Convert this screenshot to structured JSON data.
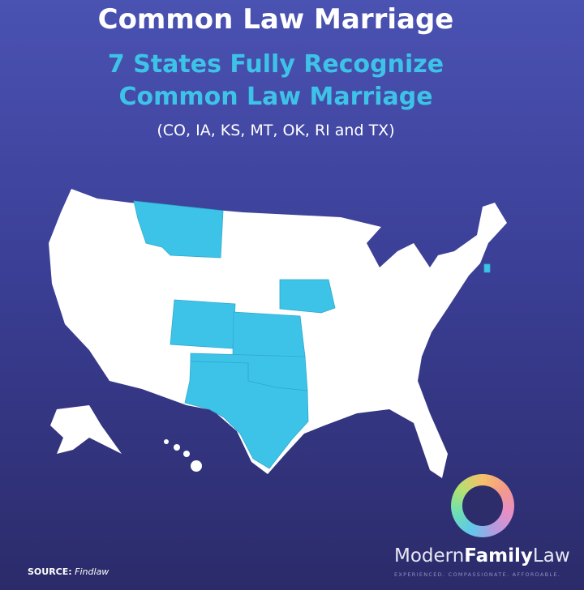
{
  "title": "Common Law Marriage",
  "subtitle_line1": "7 States Fully Recognize",
  "subtitle_line2": "Common Law Marriage",
  "states_note": "(CO, IA, KS, MT, OK, RI and TX)",
  "map": {
    "highlighted_states": [
      "CO",
      "IA",
      "KS",
      "MT",
      "OK",
      "RI",
      "TX"
    ],
    "highlight_color": "#3ec3e8",
    "base_color": "#ffffff"
  },
  "source": {
    "label": "SOURCE:",
    "value": "Findlaw"
  },
  "brand": {
    "part1": "Modern",
    "part2": "Family",
    "part3": "Law",
    "tagline": "EXPERIENCED. COMPASSIONATE. AFFORDABLE."
  },
  "colors": {
    "background_top": "#4a52b2",
    "background_bottom": "#2b2b6a",
    "accent": "#3ec3e8"
  }
}
